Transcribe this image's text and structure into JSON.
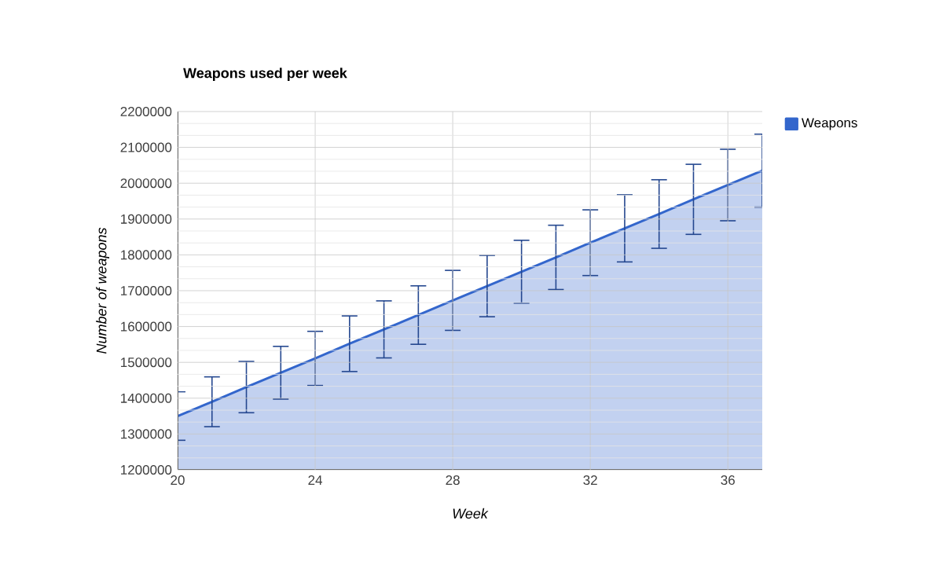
{
  "chart_data": {
    "type": "area",
    "title": "Weapons used per week",
    "xlabel": "Week",
    "ylabel": "Number of weapons",
    "x": [
      20,
      21,
      22,
      23,
      24,
      25,
      26,
      27,
      28,
      29,
      30,
      31,
      32,
      33,
      34,
      35,
      36,
      37
    ],
    "series": [
      {
        "name": "Weapons",
        "color": "#3366cc",
        "values": [
          1350000,
          1390000,
          1431000,
          1471000,
          1511000,
          1552000,
          1592000,
          1632000,
          1673000,
          1713000,
          1753000,
          1793000,
          1834000,
          1874000,
          1914000,
          1955000,
          1995000,
          2035000
        ],
        "errors": [
          67500,
          69500,
          71600,
          73600,
          75600,
          77600,
          79600,
          81600,
          83700,
          85700,
          87700,
          89700,
          91700,
          93700,
          95700,
          97800,
          99800,
          101800
        ]
      }
    ],
    "xlim": [
      20,
      37
    ],
    "xticks": [
      20,
      24,
      28,
      32,
      36
    ],
    "ylim": [
      1200000,
      2200000
    ],
    "yticks": [
      1200000,
      1300000,
      1400000,
      1500000,
      1600000,
      1700000,
      1800000,
      1900000,
      2000000,
      2100000,
      2200000
    ],
    "grid": true,
    "legend": "right"
  }
}
